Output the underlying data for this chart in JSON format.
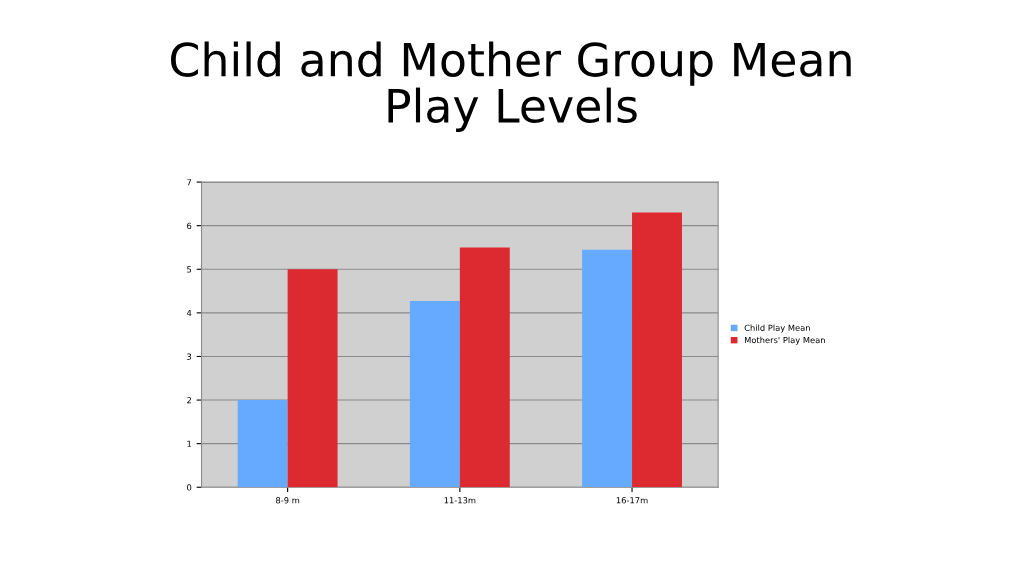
{
  "chart_data": {
    "type": "bar",
    "title": "Child and Mother Group Mean\nPlay Levels",
    "categories": [
      "8-9 m",
      "11-13m",
      "16-17m"
    ],
    "series": [
      {
        "name": "Child Play Mean",
        "color": "#66aaff",
        "values": [
          2.0,
          4.27,
          5.45
        ]
      },
      {
        "name": "Mothers' Play Mean",
        "color": "#dd2a30",
        "values": [
          5.0,
          5.5,
          6.3
        ]
      }
    ],
    "ylim": [
      0,
      7
    ],
    "yticks": [
      0,
      1,
      2,
      3,
      4,
      5,
      6,
      7
    ],
    "grid": "y",
    "legend": "right"
  }
}
